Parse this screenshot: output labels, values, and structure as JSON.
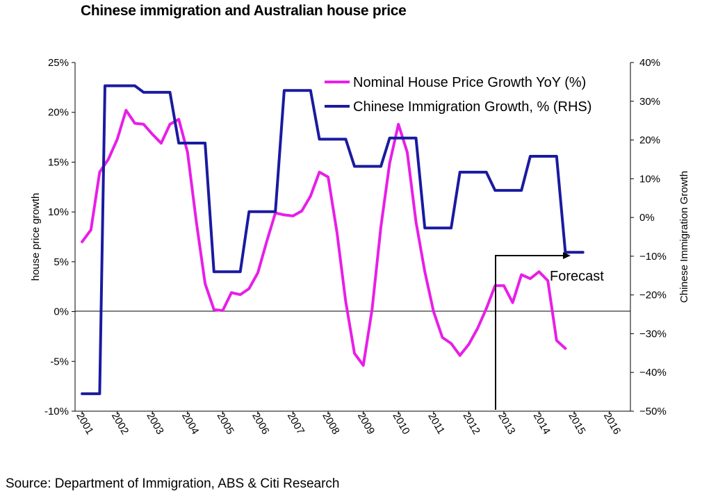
{
  "title": "Chinese immigration and Australian house price",
  "source": "Source: Department of Immigration, ABS & Citi Research",
  "colors": {
    "house_price": "#e81ee8",
    "immigration": "#1a1aa0",
    "axis": "#000000"
  },
  "chart_data": {
    "type": "line",
    "title": "Chinese immigration and Australian house price",
    "ylabel": "house price growth",
    "y2label": "Chinese Immigration Growth",
    "ylim": [
      -10,
      25
    ],
    "y2lim": [
      -50,
      40
    ],
    "xlim": [
      2000.8,
      2016.6
    ],
    "grid": false,
    "legend_position": "top-right",
    "x_tick_labels": [
      "2001",
      "2002",
      "2003",
      "2004",
      "2005",
      "2006",
      "2007",
      "2008",
      "2009",
      "2010",
      "2011",
      "2012",
      "2013",
      "2014",
      "2015",
      "2016"
    ],
    "y_tick_labels": [
      "25%",
      "20%",
      "15%",
      "10%",
      "5%",
      "0%",
      "-5%",
      "-10%"
    ],
    "y_tick_values": [
      25,
      20,
      15,
      10,
      5,
      0,
      -5,
      -10
    ],
    "y2_tick_labels": [
      "40%",
      "30%",
      "20%",
      "10%",
      "0%",
      "−10%",
      "−20%",
      "−30%",
      "−40%",
      "−50%"
    ],
    "y2_tick_values": [
      40,
      30,
      20,
      10,
      0,
      -10,
      -20,
      -30,
      -40,
      -50
    ],
    "annotation": {
      "label": "Forecast",
      "x": 2012.83
    },
    "series": [
      {
        "name": "Nominal House Price Growth YoY (%)",
        "axis": "left",
        "x": [
          2001.0,
          2001.25,
          2001.5,
          2001.75,
          2002.0,
          2002.25,
          2002.5,
          2002.75,
          2003.0,
          2003.25,
          2003.5,
          2003.75,
          2004.0,
          2004.25,
          2004.5,
          2004.75,
          2005.0,
          2005.25,
          2005.5,
          2005.75,
          2006.0,
          2006.25,
          2006.5,
          2006.75,
          2007.0,
          2007.25,
          2007.5,
          2007.75,
          2008.0,
          2008.25,
          2008.5,
          2008.75,
          2009.0,
          2009.25,
          2009.5,
          2009.75,
          2010.0,
          2010.25,
          2010.5,
          2010.75,
          2011.0,
          2011.25,
          2011.5,
          2011.75,
          2012.0,
          2012.25,
          2012.5,
          2012.75,
          2013.0,
          2013.25,
          2013.5,
          2013.75,
          2014.0,
          2014.25,
          2014.5,
          2014.75
        ],
        "values": [
          7.0,
          8.2,
          14.0,
          15.3,
          17.3,
          20.2,
          18.9,
          18.8,
          17.8,
          16.9,
          18.8,
          19.3,
          16.0,
          9.0,
          2.8,
          0.2,
          0.1,
          1.9,
          1.7,
          2.3,
          3.9,
          7.0,
          9.9,
          9.7,
          9.6,
          10.1,
          11.6,
          14.0,
          13.5,
          8.0,
          1.0,
          -4.2,
          -5.4,
          0.2,
          8.5,
          14.9,
          18.8,
          16.0,
          9.0,
          4.0,
          0.0,
          -2.6,
          -3.2,
          -4.4,
          -3.3,
          -1.7,
          0.3,
          2.6,
          2.6,
          0.9,
          3.7,
          3.3,
          4.0,
          3.1,
          -2.9,
          -3.7
        ]
      },
      {
        "name": "Chinese Immigration Growth, % (RHS)",
        "axis": "right",
        "x": [
          2001.0,
          2001.5,
          2001.65,
          2002.5,
          2002.75,
          2003.5,
          2003.75,
          2004.5,
          2004.75,
          2005.5,
          2005.75,
          2006.5,
          2006.75,
          2007.5,
          2007.75,
          2008.5,
          2008.75,
          2009.5,
          2009.75,
          2010.5,
          2010.75,
          2011.5,
          2011.75,
          2012.5,
          2012.75,
          2013.5,
          2013.75,
          2014.5,
          2014.75,
          2015.25
        ],
        "values": [
          -45.5,
          -45.5,
          34.0,
          34.0,
          32.3,
          32.3,
          19.2,
          19.2,
          -14.0,
          -14.0,
          1.5,
          1.5,
          32.8,
          32.8,
          20.2,
          20.2,
          13.2,
          13.2,
          20.5,
          20.5,
          -2.7,
          -2.7,
          11.7,
          11.7,
          7.0,
          7.0,
          15.8,
          15.8,
          -9.0,
          -9.0
        ]
      }
    ]
  }
}
